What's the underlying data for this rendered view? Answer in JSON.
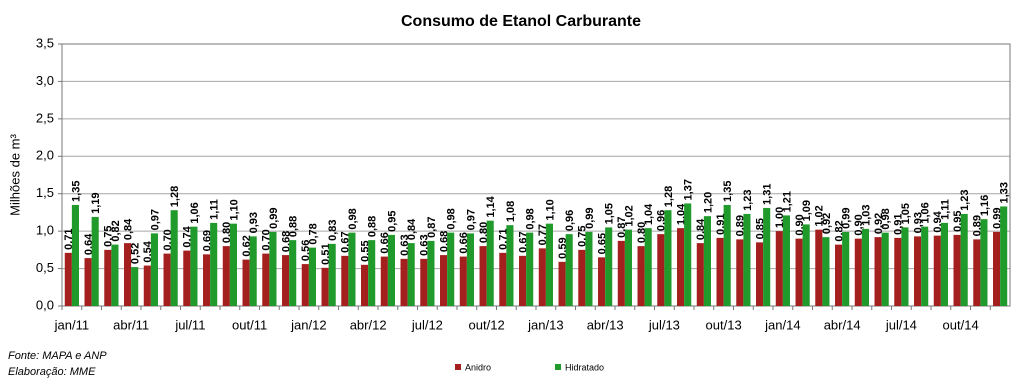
{
  "chart_data": {
    "type": "bar",
    "title": "Consumo de Etanol Carburante",
    "y_label": "Milhões de m³",
    "notes": [
      "Fonte: MAPA e ANP",
      "Elaboração: MME"
    ],
    "categories": [
      "jan/11",
      null,
      null,
      "abr/11",
      null,
      null,
      "jul/11",
      null,
      null,
      "out/11",
      null,
      null,
      "jan/12",
      null,
      null,
      "abr/12",
      null,
      null,
      "jul/12",
      null,
      null,
      "out/12",
      null,
      null,
      "jan/13",
      null,
      null,
      "abr/13",
      null,
      null,
      "jul/13",
      null,
      null,
      "out/13",
      null,
      null,
      "jan/14",
      null,
      null,
      "abr/14",
      null,
      null,
      "jul/14",
      null,
      null,
      "out/14",
      null,
      null
    ],
    "series": [
      {
        "name": "Anidro",
        "color": "#a3201e",
        "values": [
          0.71,
          0.64,
          0.75,
          0.84,
          0.54,
          0.7,
          0.74,
          0.69,
          0.8,
          0.62,
          0.7,
          0.68,
          0.56,
          0.51,
          0.67,
          0.55,
          0.66,
          0.63,
          0.63,
          0.68,
          0.66,
          0.8,
          0.71,
          0.67,
          0.77,
          0.59,
          0.75,
          0.65,
          0.87,
          0.8,
          0.96,
          1.04,
          0.84,
          0.91,
          0.89,
          0.85,
          1.0,
          0.9,
          1.02,
          0.82,
          0.9,
          0.92,
          0.91,
          0.93,
          0.94,
          0.95,
          0.89,
          0.99
        ],
        "value_labels": [
          "0,71",
          "0,64",
          "0,75",
          "0,84",
          "0,54",
          "0,70",
          "0,74",
          "0,69",
          "0,80",
          "0,62",
          "0,70",
          "0,68",
          "0,56",
          "0,51",
          "0,67",
          "0,55",
          "0,66",
          "0,63",
          "0,63",
          "0,68",
          "0,66",
          "0,80",
          "0,71",
          "0,67",
          "0,77",
          "0,59",
          "0,75",
          "0,65",
          "0,87",
          "0,80",
          "0,96",
          "1,04",
          "0,84",
          "0,91",
          "0,89",
          "0,85",
          "1,00",
          "0,90",
          "1,02",
          "0,82",
          "0,90",
          "0,92",
          "0,91",
          "0,93",
          "0,94",
          "0,95",
          "0,89",
          "0,99"
        ]
      },
      {
        "name": "Hidratado",
        "color": "#1f9a2b",
        "values": [
          1.35,
          1.19,
          0.82,
          0.52,
          0.97,
          1.28,
          1.06,
          1.11,
          1.1,
          0.93,
          0.99,
          0.88,
          0.78,
          0.83,
          0.98,
          0.88,
          0.95,
          0.84,
          0.87,
          0.98,
          0.97,
          1.14,
          1.08,
          0.98,
          1.1,
          0.96,
          0.99,
          1.05,
          1.02,
          1.04,
          1.28,
          1.37,
          1.2,
          1.35,
          1.23,
          1.31,
          1.21,
          1.09,
          0.92,
          0.99,
          1.03,
          0.98,
          1.05,
          1.06,
          1.11,
          1.23,
          1.16,
          1.33
        ],
        "value_labels": [
          "1,35",
          "1,19",
          "0,82",
          "0,52",
          "0,97",
          "1,28",
          "1,06",
          "1,11",
          "1,10",
          "0,93",
          "0,99",
          "0,88",
          "0,78",
          "0,83",
          "0,98",
          "0,88",
          "0,95",
          "0,84",
          "0,87",
          "0,98",
          "0,97",
          "1,14",
          "1,08",
          "0,98",
          "1,10",
          "0,96",
          "0,99",
          "1,05",
          "1,02",
          "1,04",
          "1,28",
          "1,37",
          "1,20",
          "1,35",
          "1,23",
          "1,31",
          "1,21",
          "1,09",
          "0,92",
          "0,99",
          "1,03",
          "0,98",
          "1,05",
          "1,06",
          "1,11",
          "1,23",
          "1,16",
          "1,33"
        ]
      }
    ],
    "ylim": [
      0,
      3.5
    ],
    "yticks": [
      {
        "value": 0,
        "label": "0,0"
      },
      {
        "value": 0.5,
        "label": "0,5"
      },
      {
        "value": 1,
        "label": "1,0"
      },
      {
        "value": 1.5,
        "label": "1,5"
      },
      {
        "value": 2,
        "label": "2,0"
      },
      {
        "value": 2.5,
        "label": "2,5"
      },
      {
        "value": 3,
        "label": "3,0"
      },
      {
        "value": 3.5,
        "label": "3,5"
      }
    ],
    "grid": true,
    "legend": "bottom"
  }
}
